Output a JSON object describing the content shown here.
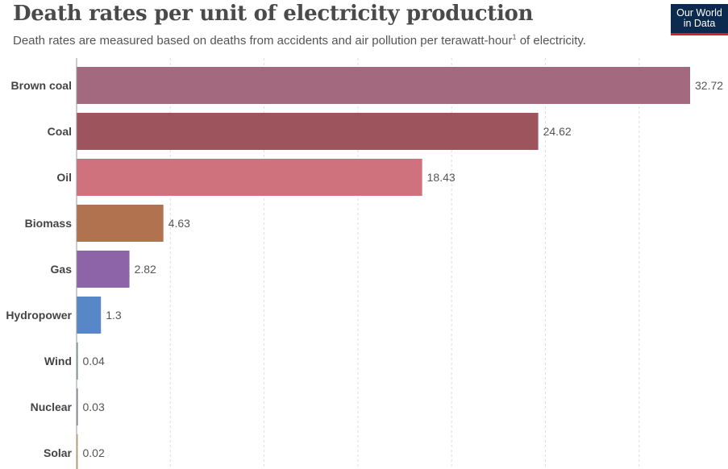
{
  "header": {
    "title": "Death rates per unit of electricity production",
    "subtitle": "Death rates are measured based on deaths from accidents and air pollution per terawatt-hour",
    "subtitle_sup": "1",
    "subtitle_tail": " of electricity.",
    "logo_line1": "Our World",
    "logo_line2": "in Data"
  },
  "chart_data": {
    "type": "bar",
    "orientation": "horizontal",
    "title": "Death rates per unit of electricity production",
    "subtitle": "Death rates are measured based on deaths from accidents and air pollution per terawatt-hour of electricity.",
    "xlim": [
      0,
      34
    ],
    "grid": true,
    "categories": [
      "Brown coal",
      "Coal",
      "Oil",
      "Biomass",
      "Gas",
      "Hydropower",
      "Wind",
      "Nuclear",
      "Solar"
    ],
    "values": [
      32.72,
      24.62,
      18.43,
      4.63,
      2.82,
      1.3,
      0.04,
      0.03,
      0.02
    ],
    "value_labels": [
      "32.72",
      "24.62",
      "18.43",
      "4.63",
      "2.82",
      "1.3",
      "0.04",
      "0.03",
      "0.02"
    ],
    "colors": [
      "#a2697f",
      "#9d545c",
      "#cf727d",
      "#b1734f",
      "#8e64a8",
      "#5887c8",
      "#5d8a8a",
      "#7a6a8a",
      "#c9a060"
    ]
  }
}
